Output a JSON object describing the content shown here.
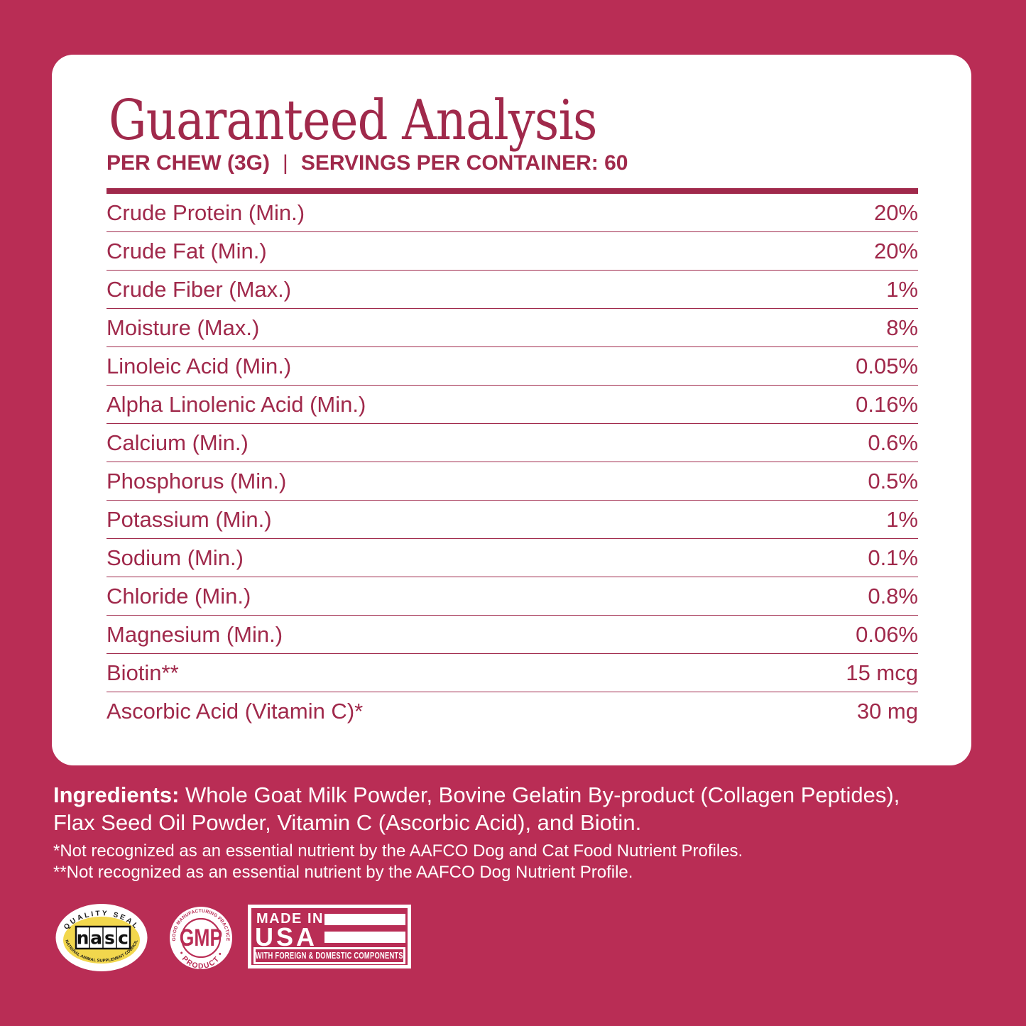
{
  "colors": {
    "background": "#B92D55",
    "card": "#FFFFFF",
    "accent": "#A0294B",
    "badge_yellow": "#F2D74D"
  },
  "card": {
    "title": "Guaranteed Analysis",
    "serving_left": "PER CHEW (3G)",
    "serving_divider": "|",
    "serving_right": "SERVINGS PER CONTAINER: 60",
    "rows": [
      {
        "label": "Crude Protein (Min.)",
        "value": "20%"
      },
      {
        "label": "Crude Fat (Min.)",
        "value": "20%"
      },
      {
        "label": "Crude Fiber (Max.)",
        "value": "1%"
      },
      {
        "label": "Moisture (Max.)",
        "value": "8%"
      },
      {
        "label": "Linoleic Acid (Min.)",
        "value": "0.05%"
      },
      {
        "label": "Alpha Linolenic Acid (Min.)",
        "value": "0.16%"
      },
      {
        "label": "Calcium (Min.)",
        "value": "0.6%"
      },
      {
        "label": "Phosphorus (Min.)",
        "value": "0.5%"
      },
      {
        "label": "Potassium (Min.)",
        "value": "1%"
      },
      {
        "label": "Sodium (Min.)",
        "value": "0.1%"
      },
      {
        "label": "Chloride (Min.)",
        "value": "0.8%"
      },
      {
        "label": "Magnesium (Min.)",
        "value": "0.06%"
      },
      {
        "label": "Biotin**",
        "value": "15 mcg"
      },
      {
        "label": "Ascorbic Acid (Vitamin C)*",
        "value": "30 mg"
      }
    ]
  },
  "ingredients": {
    "label": "Ingredients:",
    "text": "Whole Goat Milk Powder, Bovine Gelatin By-product (Collagen Peptides), Flax Seed Oil Powder, Vitamin C (Ascorbic Acid), and Biotin."
  },
  "footnotes": [
    "*Not recognized as an essential nutrient by the AAFCO Dog and Cat Food Nutrient Profiles.",
    "**Not recognized as an essential nutrient by the AAFCO Dog Nutrient Profile."
  ],
  "badges": {
    "nasc": {
      "arc_top": "QUALITY SEAL",
      "center": "nasc",
      "arc_bottom": "NATIONAL ANIMAL SUPPLEMENT COUNCIL"
    },
    "gmp": {
      "arc_top": "GOOD MANUFACTURING PRACTICE",
      "center": "GMP",
      "arc_bottom": "• PRODUCT •"
    },
    "usa": {
      "line1": "MADE IN",
      "line2": "USA",
      "bottom": "WITH FOREIGN & DOMESTIC COMPONENTS"
    }
  }
}
